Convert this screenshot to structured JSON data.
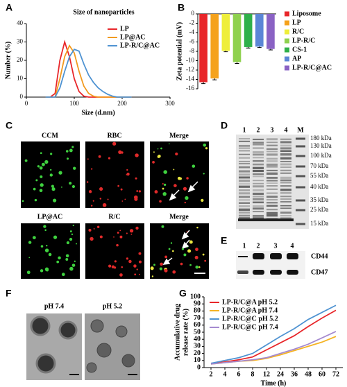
{
  "chart_data": [
    {
      "type": "line",
      "title": "Size of nanoparticles",
      "x_label": "Size (d.nm)",
      "y_label": "Number (%)",
      "x": [
        40,
        50,
        60,
        70,
        80,
        90,
        100,
        110,
        120,
        130,
        140,
        150,
        160,
        170,
        180,
        190,
        200,
        220
      ],
      "series": [
        {
          "name": "LP",
          "color": "#e8262a",
          "values": [
            0,
            0,
            2,
            20,
            30,
            22,
            10,
            3,
            0.5,
            0,
            0,
            0,
            0,
            0,
            0,
            0,
            0,
            0
          ]
        },
        {
          "name": "LP@AC",
          "color": "#f29a1f",
          "values": [
            0,
            0,
            0,
            10,
            22,
            28,
            24,
            14,
            6,
            2,
            0.5,
            0,
            0,
            0,
            0,
            0,
            0,
            0
          ]
        },
        {
          "name": "LP-R/C@AC",
          "color": "#4f93d2",
          "values": [
            0,
            0,
            0,
            5,
            14,
            22,
            26,
            25,
            18,
            12,
            8,
            5,
            3,
            1.5,
            0.5,
            0,
            0,
            0
          ]
        }
      ],
      "xlim": [
        0,
        300
      ],
      "xticks": [
        0,
        100,
        200,
        300
      ],
      "ylim": [
        0,
        40
      ],
      "yticks": [
        0,
        10,
        20,
        30,
        40
      ],
      "legend": "upper right"
    },
    {
      "type": "bar",
      "y_label": "Zeta potential (mV)",
      "categories": [
        "Liposome",
        "LP",
        "R/C",
        "LP-R/C",
        "CS-1",
        "AP",
        "LP-R/C@AC"
      ],
      "values": [
        -14.6,
        -13.8,
        -7.9,
        -10.3,
        -7.1,
        -7.0,
        -7.5
      ],
      "errors": [
        0.3,
        0.3,
        0.2,
        0.3,
        0.2,
        0.2,
        0.2
      ],
      "colors": [
        "#e8262a",
        "#f5a21b",
        "#eeee3a",
        "#8fd14f",
        "#2fb04a",
        "#5b86d6",
        "#8a62c4"
      ],
      "ylim": [
        -16,
        0
      ],
      "yticks": [
        0,
        -2,
        -4,
        -6,
        -8,
        -10,
        -12,
        -14,
        -16
      ],
      "legend": "outside right"
    },
    {
      "type": "line",
      "x_label": "Time (h)",
      "y_label": [
        "Accumulative drug",
        "release rate (%)"
      ],
      "categories": [
        "2",
        "4",
        "6",
        "8",
        "12",
        "24",
        "36",
        "48",
        "60",
        "72"
      ],
      "series": [
        {
          "name": "LP-R/C@A pH 5.2",
          "color": "#e8262a",
          "values": [
            6,
            8,
            11,
            15,
            25,
            35,
            45,
            58,
            70,
            81
          ]
        },
        {
          "name": "LP-R/C@A pH 7.4",
          "color": "#f5b323",
          "values": [
            5,
            7,
            9,
            10,
            13,
            18,
            24,
            30,
            36,
            44
          ]
        },
        {
          "name": "LP-R/C@C pH 5.2",
          "color": "#4f93d2",
          "values": [
            6,
            10,
            14,
            20,
            32,
            44,
            55,
            68,
            78,
            88
          ]
        },
        {
          "name": "LP-R/C@C pH 7.4",
          "color": "#a58ad0",
          "values": [
            5,
            7,
            9,
            11,
            14,
            20,
            26,
            33,
            42,
            51
          ]
        }
      ],
      "ylim": [
        0,
        100
      ],
      "yticks": [
        0,
        10,
        20,
        30,
        40,
        50,
        60,
        70,
        80,
        90,
        100
      ],
      "legend": "upper left"
    }
  ],
  "panel_labels": [
    "A",
    "B",
    "C",
    "D",
    "E",
    "F",
    "G"
  ],
  "microscopy": {
    "labels": [
      "CCM",
      "RBC",
      "Merge",
      "LP@AC",
      "R/C",
      "Merge"
    ]
  },
  "gel_d": {
    "lanes": [
      "1",
      "2",
      "3",
      "4",
      "M"
    ],
    "markers": [
      "180 kDa",
      "130 kDa",
      "100 kDa",
      "70 kDa",
      "55 kDa",
      "40 kDa",
      "35 kDa",
      "25 kDa",
      "15 kDa"
    ]
  },
  "gel_e": {
    "lanes": [
      "1",
      "2",
      "3",
      "4"
    ],
    "proteins": [
      "CD44",
      "CD47"
    ]
  },
  "tem": {
    "labels": [
      "pH 7.4",
      "pH 5.2"
    ]
  }
}
